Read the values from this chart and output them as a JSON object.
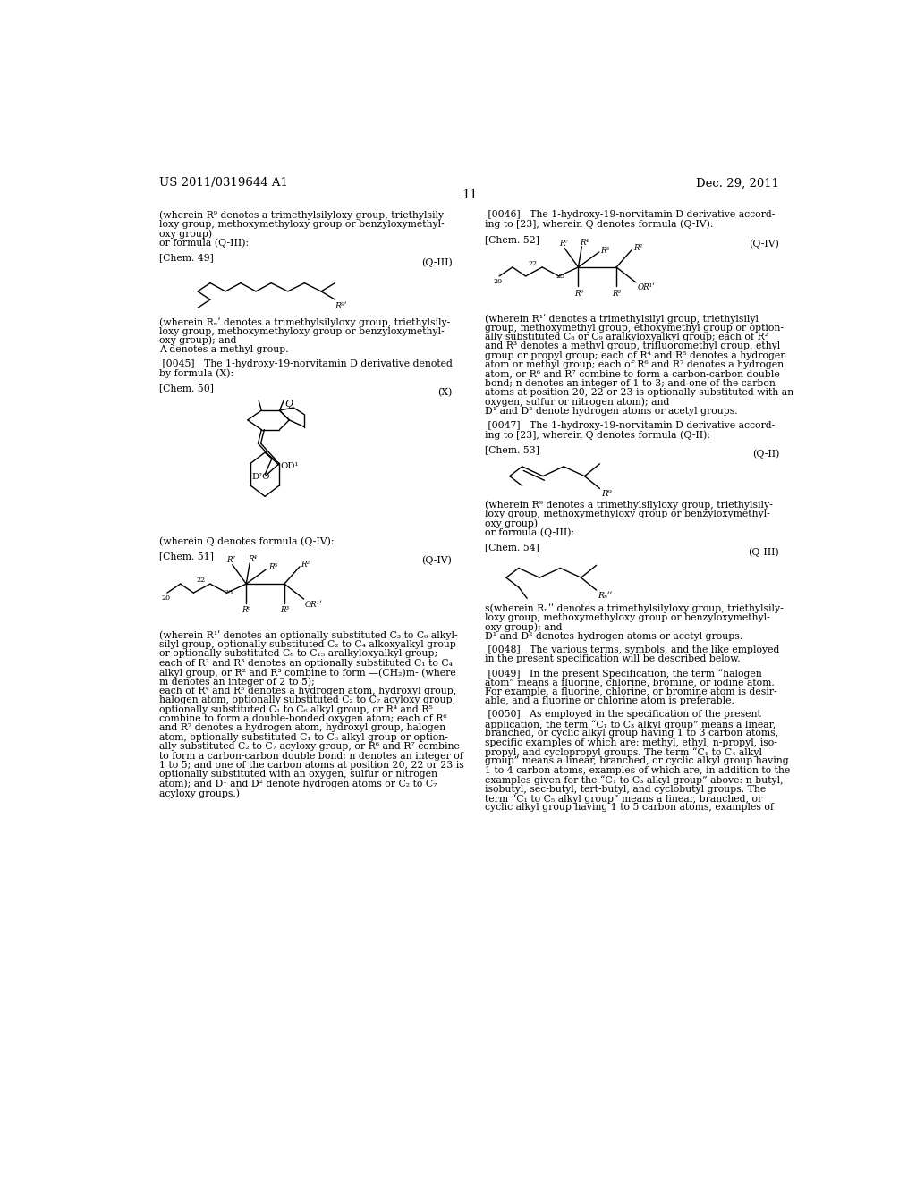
{
  "page_header_left": "US 2011/0319644 A1",
  "page_header_right": "Dec. 29, 2011",
  "page_number": "11",
  "bg_color": "#ffffff",
  "font_size_body": 7.8,
  "font_size_header": 9.5,
  "font_size_page_num": 10.0
}
